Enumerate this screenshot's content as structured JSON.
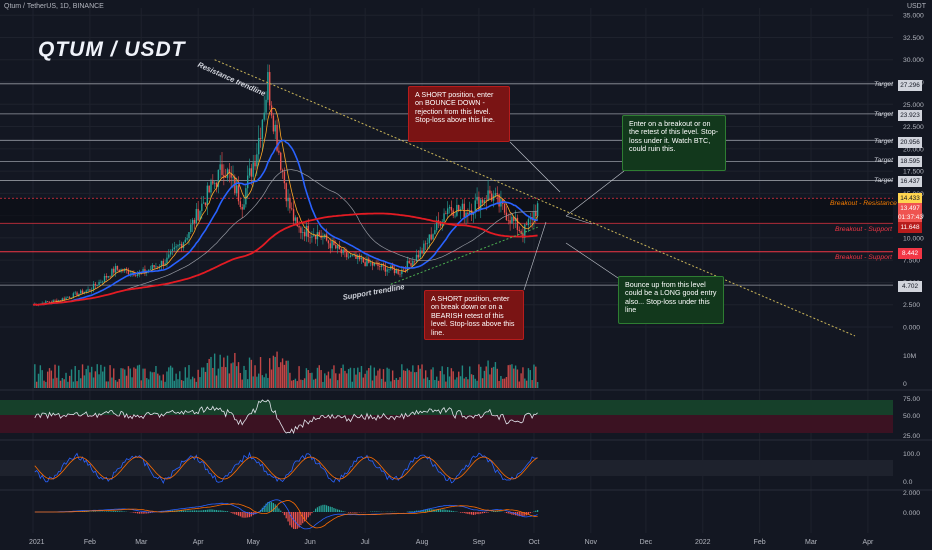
{
  "header": {
    "symbol_line": "Qtum / TetherUS, 1D, BINANCE",
    "unit": "USDT",
    "watermark": "QTUM / USDT"
  },
  "colors": {
    "background": "#131722",
    "grid": "#1e222d",
    "price_line": "#f0f3fa",
    "level_line": "#9598a1",
    "support_line": "#f23645",
    "resistance_line": "#f57c00",
    "candle_up": "#26a69a",
    "candle_down": "#ef5350",
    "ma_red": "#e31b23",
    "ma_blue": "#2962ff",
    "ma_orange": "#ffa726",
    "trend_dotted": "#c9b458",
    "support_dotted": "#4caf50",
    "rsi_band_upper": "#16402a",
    "rsi_band_lower": "#3b1222",
    "annot_red": "#7a1414",
    "annot_green": "#12381c"
  },
  "annotations": {
    "short_bounce": "A SHORT position, enter on BOUNCE DOWN - rejection from this level. Stop-loss above this line.",
    "short_breakdown": "A SHORT position, enter on break down or on a BEARISH retest of this level. Stop-loss above this line.",
    "long_breakout": "Enter on a breakout or on the retest of this level. Stop-loss under it. Watch BTC, could ruin this.",
    "long_bounce": "Bounce up from this level could be a LONG good entry also... Stop-loss under this line",
    "resistance_trendline": "Resistance trendline",
    "support_trendline": "Support trendline"
  },
  "level_labels": {
    "target": "Target",
    "breakout_resistance": "Breakout - Resistance",
    "breakout_support": "Breakout - Support",
    "breakout_support_2": "Breakout - Support"
  },
  "price_tags": {
    "t1": "27.296",
    "t2": "23.923",
    "t3": "20.956",
    "t4": "18.595",
    "t5": "16.437",
    "res": "14.433",
    "cur": "13.497",
    "timer": "01:37:43",
    "sup1": "11.648",
    "sup2": "8.442",
    "low": "4.702"
  },
  "chart_data": {
    "type": "candlestick",
    "symbol": "Qtum / TetherUS",
    "interval": "1D",
    "exchange": "BINANCE",
    "price_ticks": [
      "35.000",
      "32.500",
      "30.000",
      "27.500",
      "25.000",
      "22.500",
      "20.000",
      "17.500",
      "15.000",
      "12.500",
      "10.000",
      "7.500",
      "5.000",
      "2.500",
      "0.000"
    ],
    "ylim": [
      0,
      35
    ],
    "x_ticks": [
      "2021",
      "Feb",
      "Mar",
      "Apr",
      "May",
      "Jun",
      "Jul",
      "Aug",
      "Sep",
      "Oct",
      "Nov",
      "Dec",
      "2022",
      "Feb",
      "Mar",
      "Apr"
    ],
    "horizontal_levels": [
      27.296,
      23.923,
      20.956,
      18.595,
      16.437,
      14.433,
      11.648,
      8.442,
      4.702
    ],
    "current_price": 13.497,
    "price_path": [
      {
        "date": "2021-01-01",
        "close": 2.5
      },
      {
        "date": "2021-01-15",
        "close": 3.0
      },
      {
        "date": "2021-02-01",
        "close": 4.2
      },
      {
        "date": "2021-02-15",
        "close": 6.5
      },
      {
        "date": "2021-03-01",
        "close": 6.0
      },
      {
        "date": "2021-03-15",
        "close": 7.5
      },
      {
        "date": "2021-03-25",
        "close": 10.0
      },
      {
        "date": "2021-04-05",
        "close": 14.5
      },
      {
        "date": "2021-04-15",
        "close": 18.0
      },
      {
        "date": "2021-04-25",
        "close": 14.0
      },
      {
        "date": "2021-05-03",
        "close": 20.0
      },
      {
        "date": "2021-05-09",
        "close": 27.5
      },
      {
        "date": "2021-05-14",
        "close": 21.0
      },
      {
        "date": "2021-05-20",
        "close": 14.0
      },
      {
        "date": "2021-05-25",
        "close": 11.0
      },
      {
        "date": "2021-06-05",
        "close": 10.5
      },
      {
        "date": "2021-06-20",
        "close": 8.0
      },
      {
        "date": "2021-07-05",
        "close": 7.0
      },
      {
        "date": "2021-07-20",
        "close": 6.2
      },
      {
        "date": "2021-08-01",
        "close": 8.5
      },
      {
        "date": "2021-08-15",
        "close": 13.5
      },
      {
        "date": "2021-08-25",
        "close": 13.0
      },
      {
        "date": "2021-09-07",
        "close": 15.0
      },
      {
        "date": "2021-09-15",
        "close": 13.0
      },
      {
        "date": "2021-09-25",
        "close": 10.5
      },
      {
        "date": "2021-10-03",
        "close": 13.5
      }
    ],
    "volume_axis": [
      "10M",
      "0"
    ],
    "rsi_axis": [
      "75.00",
      "50.00",
      "25.00"
    ],
    "stoch_axis": [
      "100.0",
      "0.0"
    ],
    "macd_axis": [
      "2.000",
      "0.000"
    ]
  }
}
